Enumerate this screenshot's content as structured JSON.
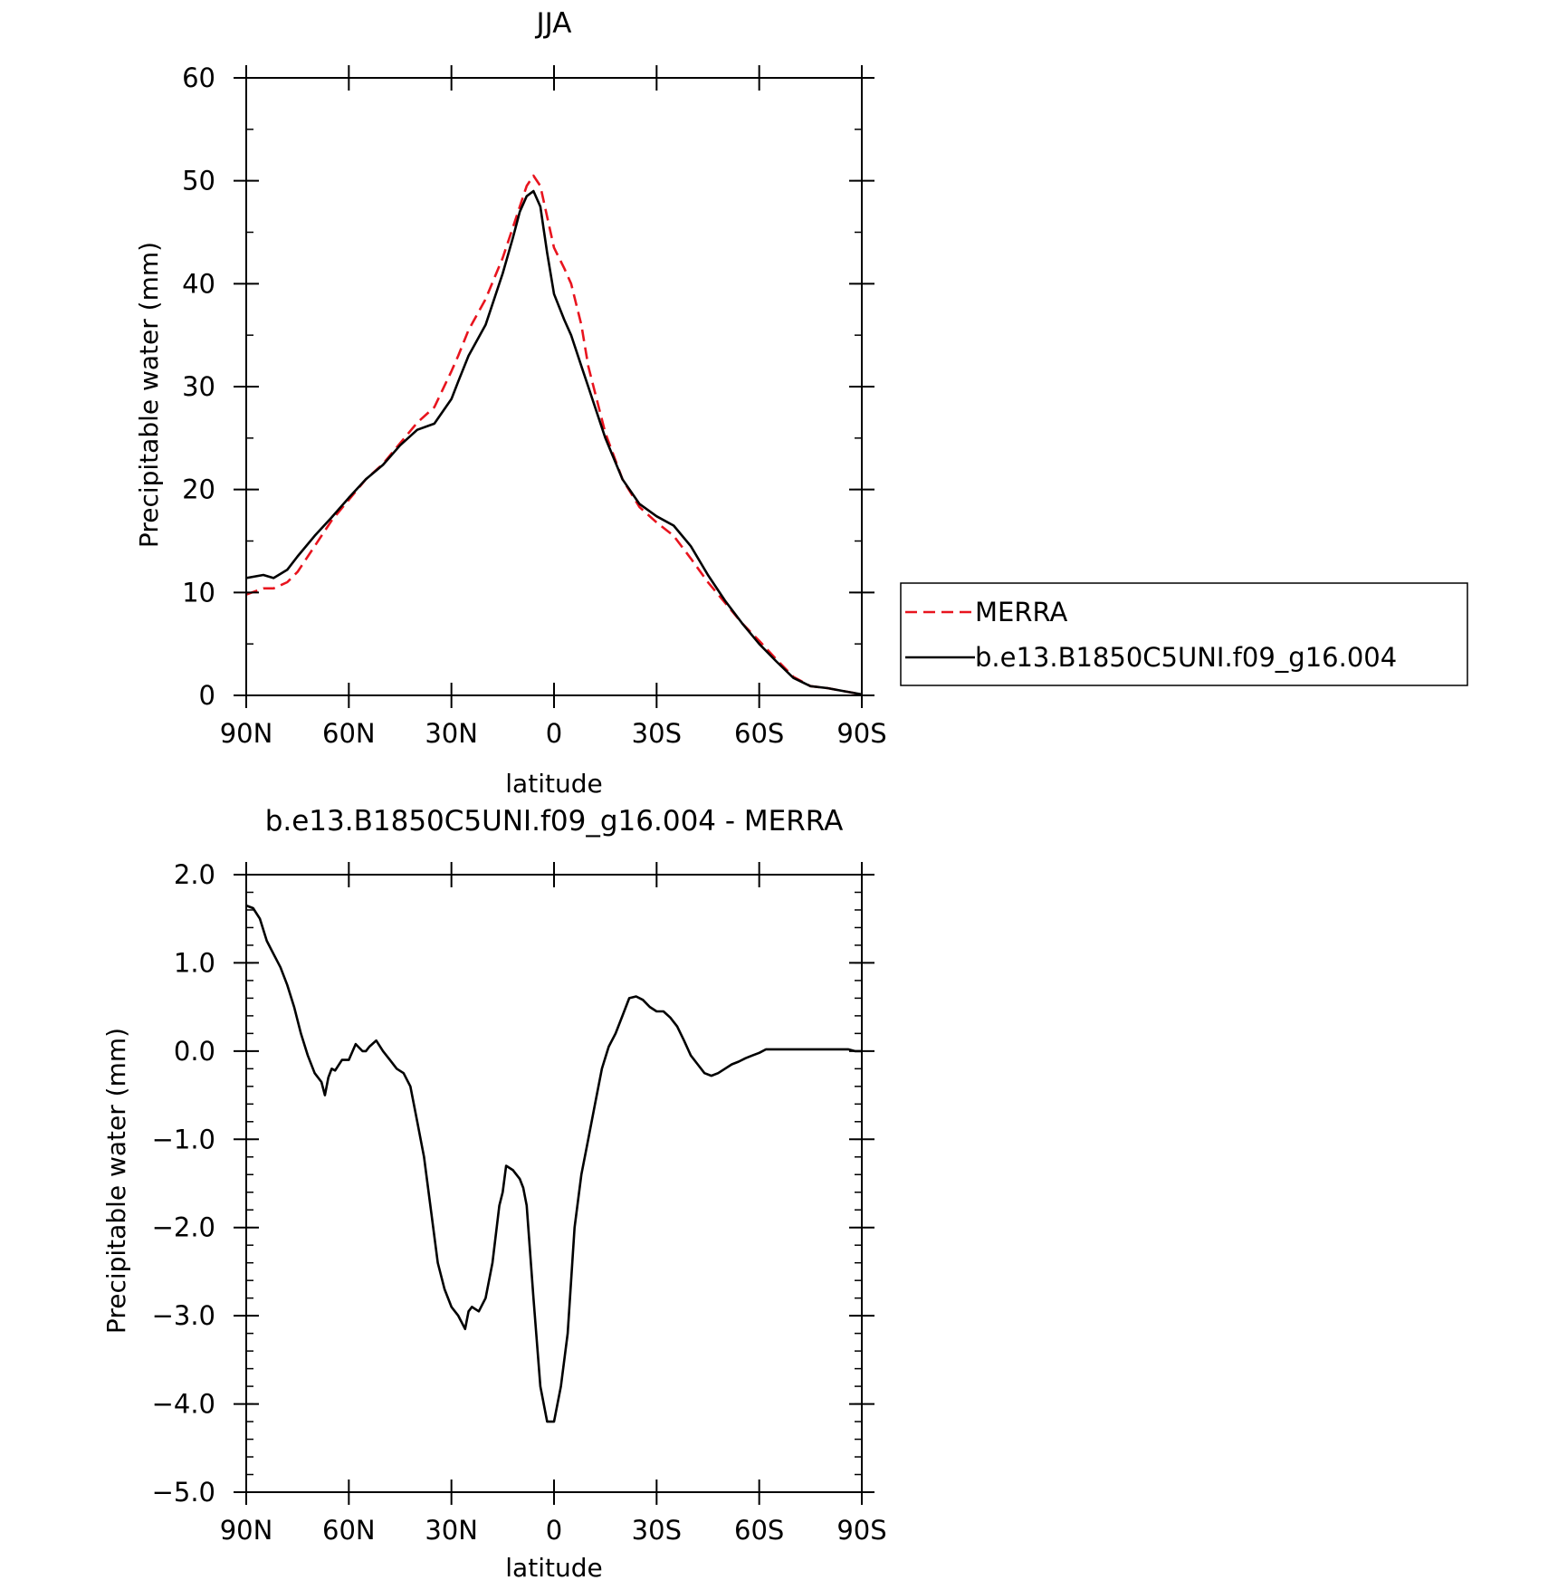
{
  "chart_data": [
    {
      "type": "line",
      "title": "JJA",
      "xlabel": "latitude",
      "ylabel": "Precipitable water (mm)",
      "xlim": [
        90,
        -90
      ],
      "ylim": [
        0,
        60
      ],
      "xticks": [
        90,
        60,
        30,
        0,
        -30,
        -60,
        -90
      ],
      "xtick_labels": [
        "90N",
        "60N",
        "30N",
        "0",
        "30S",
        "60S",
        "90S"
      ],
      "yticks": [
        0,
        10,
        20,
        30,
        40,
        50,
        60
      ],
      "ytick_labels": [
        "0",
        "10",
        "20",
        "30",
        "40",
        "50",
        "60"
      ],
      "legend": {
        "position": "right",
        "entries": [
          {
            "label": "MERRA",
            "color": "#e8141e",
            "style": "dashed"
          },
          {
            "label": "b.e13.B1850C5UNI.f09_g16.004",
            "color": "#000000",
            "style": "solid"
          }
        ]
      },
      "series": [
        {
          "name": "MERRA",
          "color": "#e8141e",
          "style": "dashed",
          "x": [
            90,
            85,
            82,
            78,
            75,
            70,
            65,
            60,
            55,
            50,
            45,
            40,
            35,
            30,
            28,
            25,
            20,
            15,
            12,
            10,
            8,
            6,
            4,
            2,
            0,
            -3,
            -5,
            -8,
            -10,
            -15,
            -20,
            -25,
            -30,
            -35,
            -40,
            -45,
            -50,
            -55,
            -60,
            -65,
            -70,
            -75,
            -80,
            -85,
            -90
          ],
          "y": [
            9.8,
            10.4,
            10.4,
            11.0,
            12.0,
            14.5,
            17.0,
            19.0,
            21.0,
            22.5,
            24.5,
            26.5,
            28.0,
            31.5,
            33.0,
            35.5,
            38.5,
            42.5,
            45.5,
            47.5,
            49.5,
            50.5,
            49.5,
            46.5,
            43.5,
            41.5,
            40.0,
            36.0,
            32.0,
            25.5,
            21.0,
            18.3,
            16.8,
            15.5,
            13.3,
            11.0,
            9.0,
            7.0,
            5.3,
            3.5,
            1.8,
            0.9,
            0.7,
            0.4,
            0.1
          ]
        },
        {
          "name": "b.e13.B1850C5UNI.f09_g16.004",
          "color": "#000000",
          "style": "solid",
          "x": [
            90,
            85,
            82,
            78,
            75,
            70,
            65,
            60,
            55,
            50,
            45,
            40,
            35,
            30,
            28,
            25,
            20,
            15,
            12,
            10,
            8,
            6,
            4,
            2,
            0,
            -3,
            -5,
            -8,
            -10,
            -15,
            -20,
            -25,
            -30,
            -35,
            -40,
            -45,
            -50,
            -55,
            -60,
            -65,
            -70,
            -75,
            -80,
            -85,
            -90
          ],
          "y": [
            11.4,
            11.7,
            11.4,
            12.2,
            13.5,
            15.5,
            17.3,
            19.2,
            21.0,
            22.4,
            24.3,
            25.8,
            26.4,
            28.8,
            30.5,
            33.0,
            36.0,
            41.0,
            44.5,
            47.0,
            48.5,
            49.0,
            47.5,
            43.0,
            39.0,
            36.5,
            35.0,
            32.0,
            30.0,
            25.0,
            21.0,
            18.6,
            17.4,
            16.5,
            14.5,
            11.7,
            9.2,
            7.0,
            5.0,
            3.3,
            1.7,
            0.9,
            0.7,
            0.4,
            0.1
          ]
        }
      ]
    },
    {
      "type": "line",
      "title": "b.e13.B1850C5UNI.f09_g16.004 - MERRA",
      "xlabel": "latitude",
      "ylabel": "Precipitable water (mm)",
      "xlim": [
        90,
        -90
      ],
      "ylim": [
        -5,
        2
      ],
      "xticks": [
        90,
        60,
        30,
        0,
        -30,
        -60,
        -90
      ],
      "xtick_labels": [
        "90N",
        "60N",
        "30N",
        "0",
        "30S",
        "60S",
        "90S"
      ],
      "yticks": [
        -5,
        -4,
        -3,
        -2,
        -1,
        0,
        1,
        2
      ],
      "ytick_labels": [
        "−5.0",
        "−4.0",
        "−3.0",
        "−2.0",
        "−1.0",
        "0.0",
        "1.0",
        "2.0"
      ],
      "series": [
        {
          "color": "#000000",
          "style": "solid",
          "x": [
            90,
            88,
            86,
            84,
            82,
            80,
            78,
            76,
            74,
            72,
            70,
            68,
            67,
            66,
            65,
            64,
            62,
            60,
            58,
            56,
            55,
            54,
            52,
            50,
            48,
            46,
            44,
            42,
            40,
            38,
            36,
            34,
            32,
            30,
            28,
            26,
            25,
            24,
            22,
            20,
            18,
            16,
            15,
            14,
            12,
            10,
            9,
            8,
            6,
            4,
            2,
            0,
            -2,
            -4,
            -6,
            -8,
            -10,
            -12,
            -14,
            -16,
            -18,
            -20,
            -22,
            -24,
            -26,
            -28,
            -30,
            -32,
            -34,
            -36,
            -38,
            -40,
            -42,
            -44,
            -46,
            -48,
            -50,
            -52,
            -54,
            -56,
            -58,
            -60,
            -62,
            -64,
            -66,
            -68,
            -70,
            -72,
            -74,
            -76,
            -78,
            -80,
            -82,
            -84,
            -86,
            -88,
            -90
          ],
          "y": [
            1.65,
            1.62,
            1.5,
            1.25,
            1.1,
            0.95,
            0.75,
            0.5,
            0.2,
            -0.05,
            -0.25,
            -0.35,
            -0.5,
            -0.3,
            -0.2,
            -0.22,
            -0.1,
            -0.1,
            0.08,
            0.0,
            0.0,
            0.05,
            0.12,
            0.0,
            -0.1,
            -0.2,
            -0.25,
            -0.4,
            -0.8,
            -1.2,
            -1.8,
            -2.4,
            -2.7,
            -2.9,
            -3.0,
            -3.15,
            -2.95,
            -2.9,
            -2.95,
            -2.8,
            -2.4,
            -1.75,
            -1.6,
            -1.3,
            -1.35,
            -1.45,
            -1.55,
            -1.75,
            -2.8,
            -3.8,
            -4.2,
            -4.2,
            -3.8,
            -3.2,
            -2.0,
            -1.4,
            -1.0,
            -0.6,
            -0.2,
            0.05,
            0.2,
            0.4,
            0.6,
            0.62,
            0.58,
            0.5,
            0.45,
            0.45,
            0.38,
            0.28,
            0.12,
            -0.05,
            -0.15,
            -0.25,
            -0.28,
            -0.25,
            -0.2,
            -0.15,
            -0.12,
            -0.08,
            -0.05,
            -0.02,
            0.02,
            0.02,
            0.02,
            0.02,
            0.02,
            0.02,
            0.02,
            0.02,
            0.02,
            0.02,
            0.02,
            0.02,
            0.02,
            0.0,
            0.0
          ]
        }
      ]
    }
  ]
}
